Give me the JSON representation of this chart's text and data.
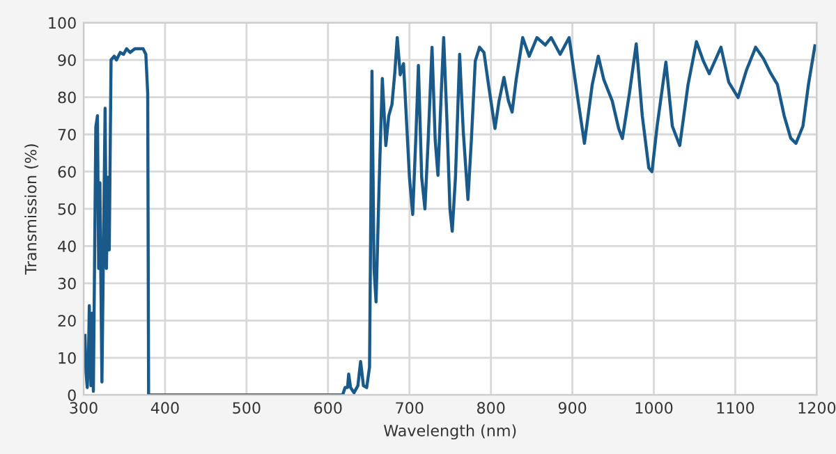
{
  "chart_data": {
    "type": "line",
    "xlabel": "Wavelength (nm)",
    "ylabel": "Transmission (%)",
    "xlim": [
      300,
      1200
    ],
    "xticks": [
      300,
      400,
      500,
      600,
      700,
      800,
      900,
      1000,
      1100,
      1200
    ],
    "ylim": [
      0,
      100
    ],
    "yticks": [
      0,
      10,
      20,
      30,
      40,
      50,
      60,
      70,
      80,
      90,
      100
    ],
    "grid": true,
    "marker": "none",
    "line_style": "solid",
    "series": [
      {
        "color": "#1a5a8a",
        "x": [
          301.7,
          303,
          304.5,
          306,
          307,
          309,
          310.7,
          312,
          315,
          317,
          318.5,
          320,
          322.5,
          326.4,
          328,
          330,
          331.5,
          333.7,
          337.6,
          340.4,
          345,
          349,
          352.8,
          357,
          363,
          368.5,
          373,
          376.4,
          378.7,
          379.8,
          618,
          621,
          624,
          625.4,
          627.7,
          632,
          636.7,
          640,
          643.5,
          647.5,
          651,
          654,
          656.5,
          659,
          662.7,
          666.7,
          671,
          674.6,
          678.5,
          682,
          685,
          688.7,
          692.7,
          700,
          704,
          708,
          711,
          715,
          719,
          723,
          727.7,
          731.6,
          735,
          739,
          742,
          745.8,
          749.7,
          752.5,
          756.5,
          761.6,
          766,
          771.8,
          776,
          780.8,
          786,
          791.5,
          797,
          805,
          810,
          816,
          821.5,
          826,
          831,
          839,
          847,
          856.5,
          866.7,
          874,
          885,
          896,
          907.4,
          914.8,
          924.4,
          931.8,
          938.6,
          948.9,
          956.8,
          961.4,
          970,
          978.4,
          985.8,
          993.8,
          997.7,
          1004,
          1014.8,
          1022.7,
          1031.8,
          1042,
          1052.3,
          1060.8,
          1068,
          1082.4,
          1092,
          1103.4,
          1113.6,
          1125,
          1134.7,
          1143,
          1151.7,
          1160,
          1168,
          1174.4,
          1183,
          1189.8,
          1197.7
        ],
        "values": [
          16,
          6,
          2,
          10,
          24,
          2.5,
          22,
          1,
          72,
          75,
          34,
          57,
          3.5,
          77,
          34,
          58.5,
          39,
          90,
          91,
          90,
          92,
          91.5,
          93,
          92,
          93,
          93,
          93,
          91.5,
          81,
          0,
          0,
          2,
          2,
          5.6,
          2,
          0.6,
          2.5,
          9,
          2.5,
          2,
          7.5,
          87,
          34,
          25,
          56,
          85,
          67,
          75,
          78,
          86.5,
          96,
          86,
          89,
          58.5,
          48.5,
          70,
          88.5,
          58.5,
          50,
          68.5,
          93.4,
          68.5,
          59,
          81,
          96,
          75,
          50,
          44,
          58.5,
          91.5,
          71,
          52.5,
          68.5,
          89.7,
          93.4,
          92,
          83.4,
          71.6,
          79,
          85.3,
          79,
          76,
          84.7,
          96,
          91,
          96,
          94,
          96,
          91.5,
          96,
          78.5,
          67.6,
          83.4,
          91,
          84.7,
          79,
          71.6,
          68.9,
          81,
          94.3,
          75,
          61,
          60,
          72.2,
          89.4,
          72.2,
          67,
          83.4,
          94.9,
          89.7,
          86.3,
          93.4,
          84,
          79.9,
          87.2,
          93.4,
          90.3,
          86.6,
          83.4,
          75,
          69,
          67.6,
          72.2,
          83.4,
          93.8
        ]
      }
    ]
  }
}
